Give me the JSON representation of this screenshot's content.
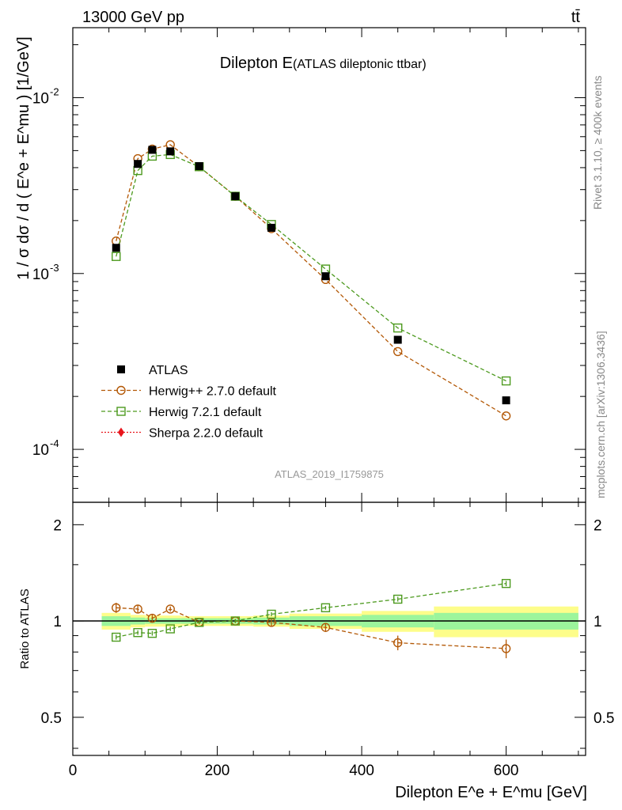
{
  "header": {
    "left_label": "13000 GeV pp",
    "right_label": "tt̄"
  },
  "side_labels": {
    "rivet": "Rivet 3.1.10, ≥ 400k events",
    "mcplots": "mcplots.cern.ch [arXiv:1306.3436]"
  },
  "chart_data": {
    "type": "scatter",
    "title": "Dilepton E",
    "subtitle": "(ATLAS dileptonic ttbar)",
    "analysis_id": "ATLAS_2019_I1759875",
    "xlabel": "Dilepton E^e + E^mu [GeV]",
    "ylabel": "1 / σ dσ / d ( E^e + E^mu ) [1/GeV]",
    "ratio_ylabel": "Ratio to ATLAS",
    "xlim": [
      0,
      710
    ],
    "ylim": [
      5e-05,
      0.025
    ],
    "ylog": true,
    "ratio_ylim": [
      0.38,
      2.35
    ],
    "x_ticks": [
      0,
      200,
      400,
      600
    ],
    "y_ticks": [
      {
        "value": 0.01,
        "base": "10",
        "exp": "-2"
      },
      {
        "value": 0.001,
        "base": "10",
        "exp": "-3"
      },
      {
        "value": 0.0001,
        "base": "10",
        "exp": "-4"
      }
    ],
    "ratio_ticks": [
      {
        "value": 0.5,
        "label": "0.5"
      },
      {
        "value": 1,
        "label": "1"
      },
      {
        "value": 2,
        "label": "2"
      }
    ],
    "bins": [
      {
        "lo": 40,
        "hi": 80
      },
      {
        "lo": 80,
        "hi": 100
      },
      {
        "lo": 100,
        "hi": 120
      },
      {
        "lo": 120,
        "hi": 150
      },
      {
        "lo": 150,
        "hi": 200
      },
      {
        "lo": 200,
        "hi": 250
      },
      {
        "lo": 250,
        "hi": 300
      },
      {
        "lo": 300,
        "hi": 400
      },
      {
        "lo": 400,
        "hi": 500
      },
      {
        "lo": 500,
        "hi": 700
      }
    ],
    "band_inner": [
      0.035,
      0.025,
      0.02,
      0.02,
      0.02,
      0.02,
      0.025,
      0.035,
      0.045,
      0.06
    ],
    "band_outer": [
      0.06,
      0.045,
      0.04,
      0.04,
      0.035,
      0.035,
      0.04,
      0.055,
      0.075,
      0.11
    ],
    "series": [
      {
        "name": "ATLAS",
        "color": "#000000",
        "marker": "filled-square",
        "x": [
          60,
          90,
          110,
          135,
          175,
          225,
          275,
          350,
          450,
          600
        ],
        "y": [
          0.0014,
          0.0042,
          0.00505,
          0.00495,
          0.00408,
          0.00275,
          0.00182,
          0.000965,
          0.00042,
          0.00019
        ]
      },
      {
        "name": "Herwig++ 2.7.0 default",
        "color": "#b35806",
        "marker": "open-circle",
        "x": [
          60,
          90,
          110,
          135,
          175,
          225,
          275,
          350,
          450,
          600
        ],
        "y": [
          0.00153,
          0.0045,
          0.0051,
          0.0054,
          0.00405,
          0.00275,
          0.0018,
          0.000925,
          0.00036,
          0.000155
        ],
        "ratio": [
          1.1,
          1.09,
          1.02,
          1.09,
          0.99,
          1.0,
          0.99,
          0.955,
          0.855,
          0.82
        ],
        "ratio_err": [
          0.04,
          0.03,
          0.03,
          0.02,
          0.015,
          0.015,
          0.025,
          0.03,
          0.045,
          0.055
        ]
      },
      {
        "name": "Herwig 7.2.1 default",
        "color": "#4d9a1f",
        "marker": "open-square",
        "x": [
          60,
          90,
          110,
          135,
          175,
          225,
          275,
          350,
          450,
          600
        ],
        "y": [
          0.00125,
          0.00385,
          0.00465,
          0.00475,
          0.00405,
          0.00275,
          0.0019,
          0.00106,
          0.00049,
          0.000245
        ],
        "ratio": [
          0.89,
          0.92,
          0.915,
          0.945,
          0.99,
          1.0,
          1.05,
          1.1,
          1.17,
          1.31
        ],
        "ratio_err": [
          0.015,
          0.015,
          0.015,
          0.015,
          0.01,
          0.01,
          0.015,
          0.015,
          0.02,
          0.025
        ]
      },
      {
        "name": "Sherpa 2.2.0 default",
        "color": "#e8151c",
        "marker": "filled-diamond",
        "x": [],
        "y": []
      }
    ]
  }
}
